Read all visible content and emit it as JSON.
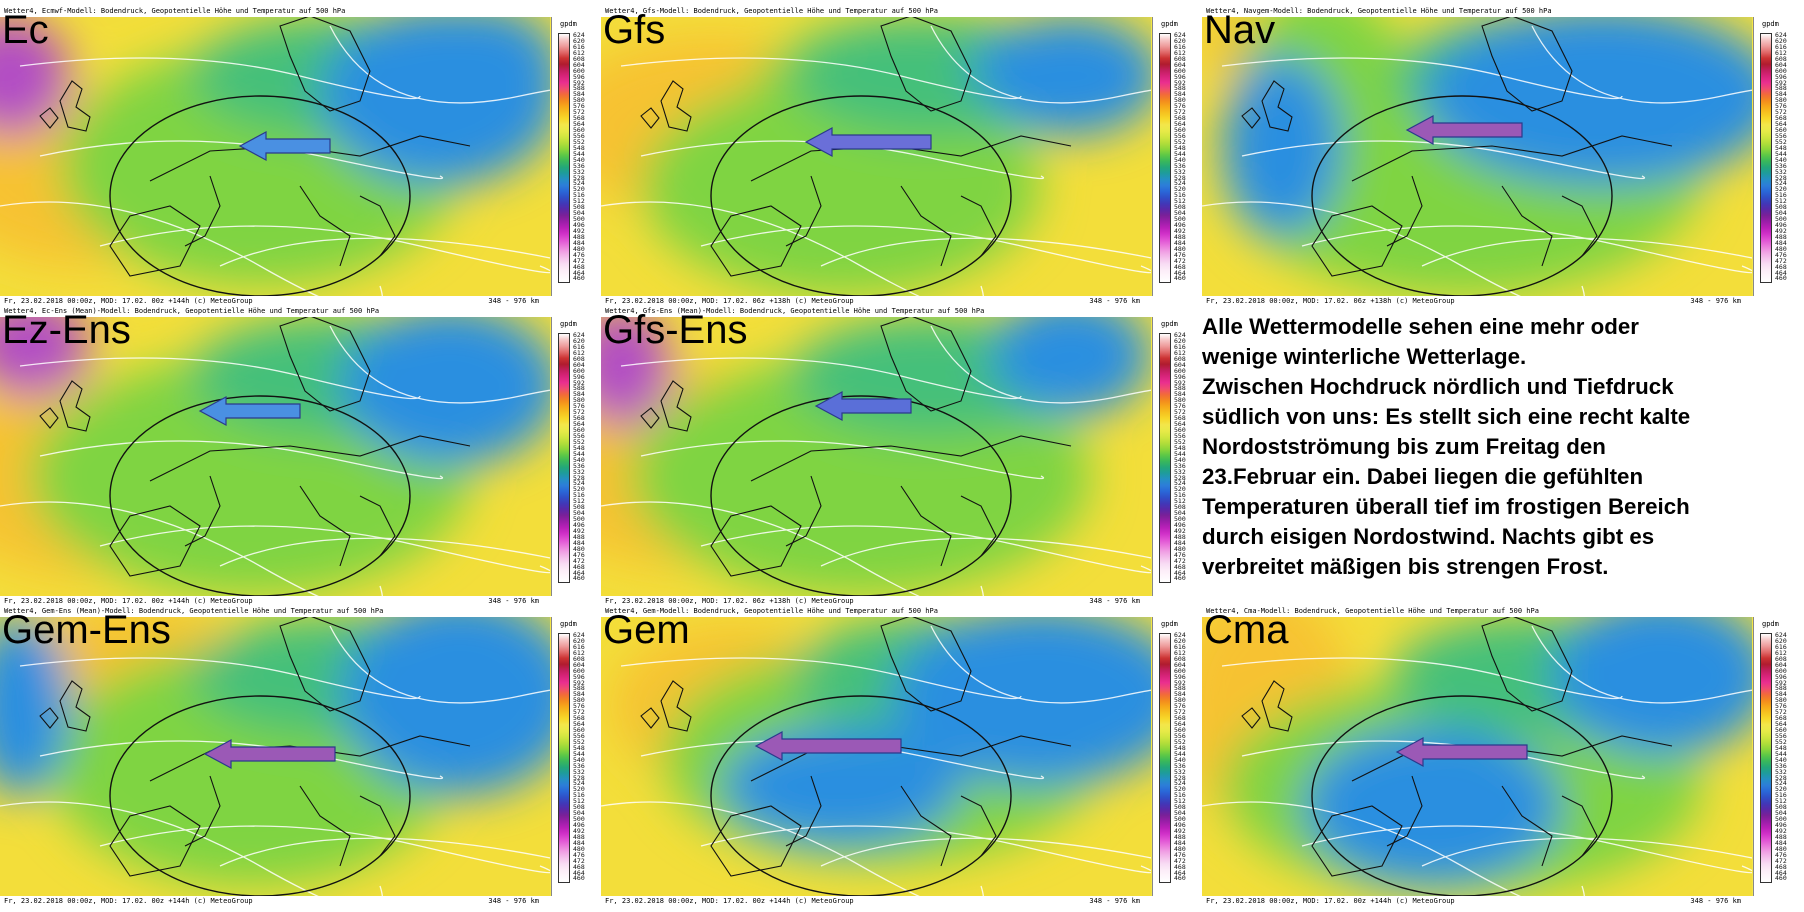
{
  "panels": [
    {
      "label": "Ec",
      "header": "Wetter4, Ecmwf-Modell: Bodendruck, Geopotentielle Höhe und Temperatur auf 500 hPa",
      "footer": "Fr, 23.02.2018 00:00z, MOD: 17.02. 00z +144h (c) MeteoGroup",
      "scale": "348 - 976 km",
      "arrow_color": "#4a90e2"
    },
    {
      "label": "Gfs",
      "header": "Wetter4, Gfs-Modell: Bodendruck, Geopotentielle Höhe und Temperatur auf 500 hPa",
      "footer": "Fr, 23.02.2018 00:00z, MOD: 17.02. 06z +138h (c) MeteoGroup",
      "scale": "348 - 976 km",
      "arrow_color": "#6a6fd8"
    },
    {
      "label": "Nav",
      "header": "Wetter4, Navgem-Modell: Bodendruck, Geopotentielle Höhe und Temperatur auf 500 hPa",
      "footer": "Fr, 23.02.2018 00:00z, MOD: 17.02. 06z +138h (c) MeteoGroup",
      "scale": "348 - 976 km",
      "arrow_color": "#9b59b6"
    },
    {
      "label": "Ez-Ens",
      "header": "Wetter4, Ec-Ens (Mean)-Modell: Bodendruck, Geopotentielle Höhe und Temperatur auf 500 hPa",
      "footer": "Fr, 23.02.2018 00:00z, MOD: 17.02. 00z +144h (c) MeteoGroup",
      "scale": "348 - 976 km",
      "arrow_color": "#4a90e2"
    },
    {
      "label": "Gfs-Ens",
      "header": "Wetter4, Gfs-Ens (Mean)-Modell: Bodendruck, Geopotentielle Höhe und Temperatur auf 500 hPa",
      "footer": "Fr, 23.02.2018 00:00z, MOD: 17.02. 06z +138h (c) MeteoGroup",
      "scale": "348 - 976 km",
      "arrow_color": "#5a6fd8"
    },
    {
      "label": "Gem-Ens",
      "header": "Wetter4, Gem-Ens (Mean)-Modell: Bodendruck, Geopotentielle Höhe und Temperatur auf 500 hPa",
      "footer": "Fr, 23.02.2018 00:00z, MOD: 17.02. 00z +144h (c) MeteoGroup",
      "scale": "348 - 976 km",
      "arrow_color": "#9b59b6"
    },
    {
      "label": "Gem",
      "header": "Wetter4, Gem-Modell: Bodendruck, Geopotentielle Höhe und Temperatur auf 500 hPa",
      "footer": "Fr, 23.02.2018 00:00z, MOD: 17.02. 00z +144h (c) MeteoGroup",
      "scale": "348 - 976 km",
      "arrow_color": "#9b59b6"
    },
    {
      "label": "Cma",
      "header": "Wetter4, Cma-Modell: Bodendruck, Geopotentielle Höhe und Temperatur auf 500 hPa",
      "footer": "Fr, 23.02.2018 00:00z, MOD: 17.02. 00z +144h (c) MeteoGroup",
      "scale": "348 - 976 km",
      "arrow_color": "#9b59b6"
    }
  ],
  "legend": {
    "unit": "gpdm",
    "ticks": [
      "624",
      "620",
      "616",
      "612",
      "608",
      "604",
      "600",
      "596",
      "592",
      "588",
      "584",
      "580",
      "576",
      "572",
      "568",
      "564",
      "560",
      "556",
      "552",
      "548",
      "544",
      "540",
      "536",
      "532",
      "528",
      "524",
      "520",
      "516",
      "512",
      "508",
      "504",
      "500",
      "496",
      "492",
      "488",
      "484",
      "480",
      "476",
      "472",
      "468",
      "464",
      "460"
    ],
    "colors": [
      "#ffffff",
      "#f6c6c6",
      "#ee9c9c",
      "#e06a6a",
      "#cc3333",
      "#b01c2f",
      "#c21e5e",
      "#d8247b",
      "#ea2e8f",
      "#f04a72",
      "#f26a3a",
      "#f38a1e",
      "#f6a81a",
      "#f6c220",
      "#f7d82a",
      "#f3e64a",
      "#e8ea48",
      "#d2e640",
      "#b4de3a",
      "#8ed63a",
      "#5ec846",
      "#3ab85a",
      "#24a878",
      "#1e9c9c",
      "#2490c4",
      "#2c7ed8",
      "#2a68d8",
      "#3050c8",
      "#4038b8",
      "#5a28a8",
      "#7a2098",
      "#9a1ea8",
      "#b820b8",
      "#d030c8",
      "#e050d4",
      "#ea78dc",
      "#f0a0e4",
      "#f4c0ec",
      "#f8dcf4",
      "#fcecf8",
      "#fef6fc",
      "#ffffff"
    ]
  },
  "text_panel": {
    "lines": [
      "Alle Wettermodelle sehen eine mehr oder",
      "wenige winterliche Wetterlage.",
      "Zwischen Hochdruck nördlich und Tiefdruck",
      "südlich von uns: Es stellt sich eine recht kalte",
      "Nordostströmung bis zum Freitag den",
      "23.Februar ein. Dabei liegen die gefühlten",
      "Temperaturen überall tief im frostigen Bereich",
      "durch eisigen Nordostwind. Nachts gibt es",
      "verbreitet mäßigen bis strengen Frost."
    ]
  }
}
